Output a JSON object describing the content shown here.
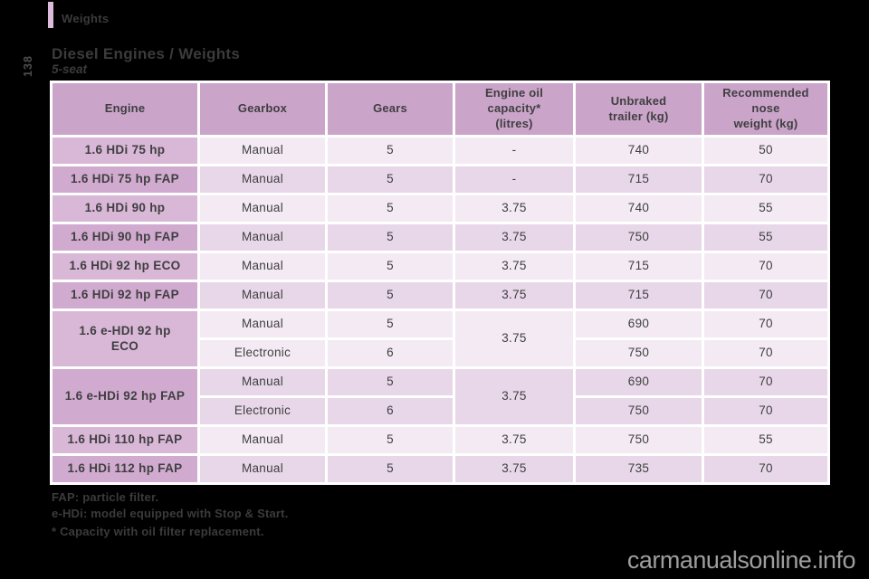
{
  "page": {
    "section_label": "Weights",
    "title": "Diesel Engines / Weights",
    "subtitle": "5-seat",
    "page_number": "138"
  },
  "table": {
    "headers": [
      "Engine",
      "Gearbox",
      "Gears",
      "Engine oil\ncapacity*\n(litres)",
      "Unbraked\ntrailer (kg)",
      "Recommended\nnose\nweight (kg)"
    ],
    "rows": [
      {
        "engine": "1.6 HDi 75 hp",
        "shade": "light",
        "oil": "-",
        "sub": [
          {
            "gearbox": "Manual",
            "gears": "5",
            "trailer": "740",
            "nose": "50"
          }
        ]
      },
      {
        "engine": "1.6 HDi 75 hp FAP",
        "shade": "dark",
        "oil": "-",
        "sub": [
          {
            "gearbox": "Manual",
            "gears": "5",
            "trailer": "715",
            "nose": "70"
          }
        ]
      },
      {
        "engine": "1.6 HDi 90 hp",
        "shade": "light",
        "oil": "3.75",
        "sub": [
          {
            "gearbox": "Manual",
            "gears": "5",
            "trailer": "740",
            "nose": "55"
          }
        ]
      },
      {
        "engine": "1.6 HDi 90 hp FAP",
        "shade": "dark",
        "oil": "3.75",
        "sub": [
          {
            "gearbox": "Manual",
            "gears": "5",
            "trailer": "750",
            "nose": "55"
          }
        ]
      },
      {
        "engine": "1.6 HDi 92 hp ECO",
        "shade": "light",
        "oil": "3.75",
        "sub": [
          {
            "gearbox": "Manual",
            "gears": "5",
            "trailer": "715",
            "nose": "70"
          }
        ]
      },
      {
        "engine": "1.6 HDi 92 hp FAP",
        "shade": "dark",
        "oil": "3.75",
        "sub": [
          {
            "gearbox": "Manual",
            "gears": "5",
            "trailer": "715",
            "nose": "70"
          }
        ]
      },
      {
        "engine": "1.6 e-HDI 92 hp\nECO",
        "shade": "light",
        "oil": "3.75",
        "sub": [
          {
            "gearbox": "Manual",
            "gears": "5",
            "trailer": "690",
            "nose": "70"
          },
          {
            "gearbox": "Electronic",
            "gears": "6",
            "trailer": "750",
            "nose": "70"
          }
        ]
      },
      {
        "engine": "1.6 e-HDi 92 hp FAP",
        "shade": "dark",
        "oil": "3.75",
        "sub": [
          {
            "gearbox": "Manual",
            "gears": "5",
            "trailer": "690",
            "nose": "70"
          },
          {
            "gearbox": "Electronic",
            "gears": "6",
            "trailer": "750",
            "nose": "70"
          }
        ]
      },
      {
        "engine": "1.6 HDi 110 hp FAP",
        "shade": "light",
        "oil": "3.75",
        "sub": [
          {
            "gearbox": "Manual",
            "gears": "5",
            "trailer": "750",
            "nose": "55"
          }
        ]
      },
      {
        "engine": "1.6 HDi 112 hp FAP",
        "shade": "dark",
        "oil": "3.75",
        "sub": [
          {
            "gearbox": "Manual",
            "gears": "5",
            "trailer": "735",
            "nose": "70"
          }
        ]
      }
    ]
  },
  "footnotes": [
    "FAP: particle filter.",
    "e-HDi: model equipped with Stop & Start.",
    "* Capacity with oil filter replacement."
  ],
  "watermark": "carmanualsonline.info",
  "colors": {
    "background": "#000000",
    "heading-text": "#3b3b3d",
    "table-text": "#3f3f41",
    "table-gap": "#ffffff",
    "header-bg": "#cba4c9",
    "engine-light": "#d9b7d7",
    "engine-dark": "#d1abcf",
    "cell-light": "#f3eaf3",
    "cell-dark": "#e8d7e8",
    "accent-bar": "#ddbbda",
    "page-number": "#4e4e50",
    "watermark": "#9e9e9e"
  }
}
